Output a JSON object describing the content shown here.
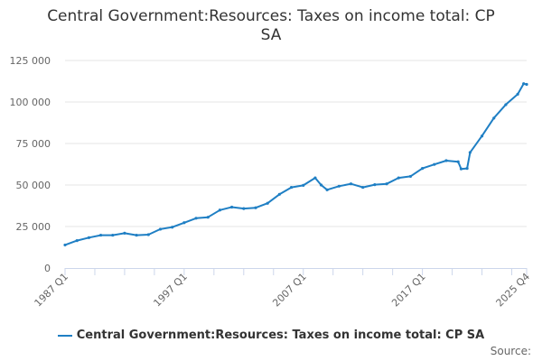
{
  "chart_data": {
    "type": "line",
    "title": "Central Government:Resources: Taxes on income total: CP SA",
    "xlabel": "",
    "ylabel": "",
    "ylim": [
      0,
      125000
    ],
    "yticks": [
      0,
      25000,
      50000,
      75000,
      100000,
      125000
    ],
    "ytick_labels": [
      "0",
      "25 000",
      "50 000",
      "75 000",
      "100 000",
      "125 000"
    ],
    "xlim": [
      1987.0,
      2025.75
    ],
    "xticks": [
      1987.0,
      1997.0,
      2007.0,
      2017.0,
      2025.75
    ],
    "xtick_labels": [
      "1987 Q1",
      "1997 Q1",
      "2007 Q1",
      "2017 Q1",
      "2025 Q4"
    ],
    "grid": true,
    "legend_position": "bottom",
    "color": "#1f7fc4",
    "series": [
      {
        "name": "Central Government:Resources: Taxes on income total: CP SA",
        "x": [
          1987,
          1988,
          1989,
          1990,
          1991,
          1992,
          1993,
          1994,
          1995,
          1996,
          1997,
          1998,
          1999,
          2000,
          2001,
          2002,
          2003,
          2004,
          2005,
          2006,
          2007,
          2008,
          2008.5,
          2009,
          2010,
          2011,
          2012,
          2013,
          2014,
          2015,
          2016,
          2017,
          2018,
          2019,
          2020,
          2020.25,
          2020.75,
          2021,
          2022,
          2023,
          2024,
          2025,
          2025.5,
          2025.75
        ],
        "values": [
          13900,
          16500,
          18300,
          19800,
          19800,
          21000,
          19800,
          20100,
          23400,
          24600,
          27300,
          30000,
          30600,
          34900,
          36700,
          35800,
          36300,
          39000,
          44400,
          48600,
          49800,
          54300,
          50000,
          47100,
          49300,
          50700,
          48600,
          50200,
          50700,
          54300,
          55200,
          60000,
          62400,
          64700,
          64000,
          59700,
          60000,
          69600,
          79500,
          90300,
          98400,
          104700,
          111000,
          110600
        ]
      }
    ]
  },
  "legend": {
    "label": "Central Government:Resources: Taxes on income total: CP SA"
  },
  "source": "Source:"
}
